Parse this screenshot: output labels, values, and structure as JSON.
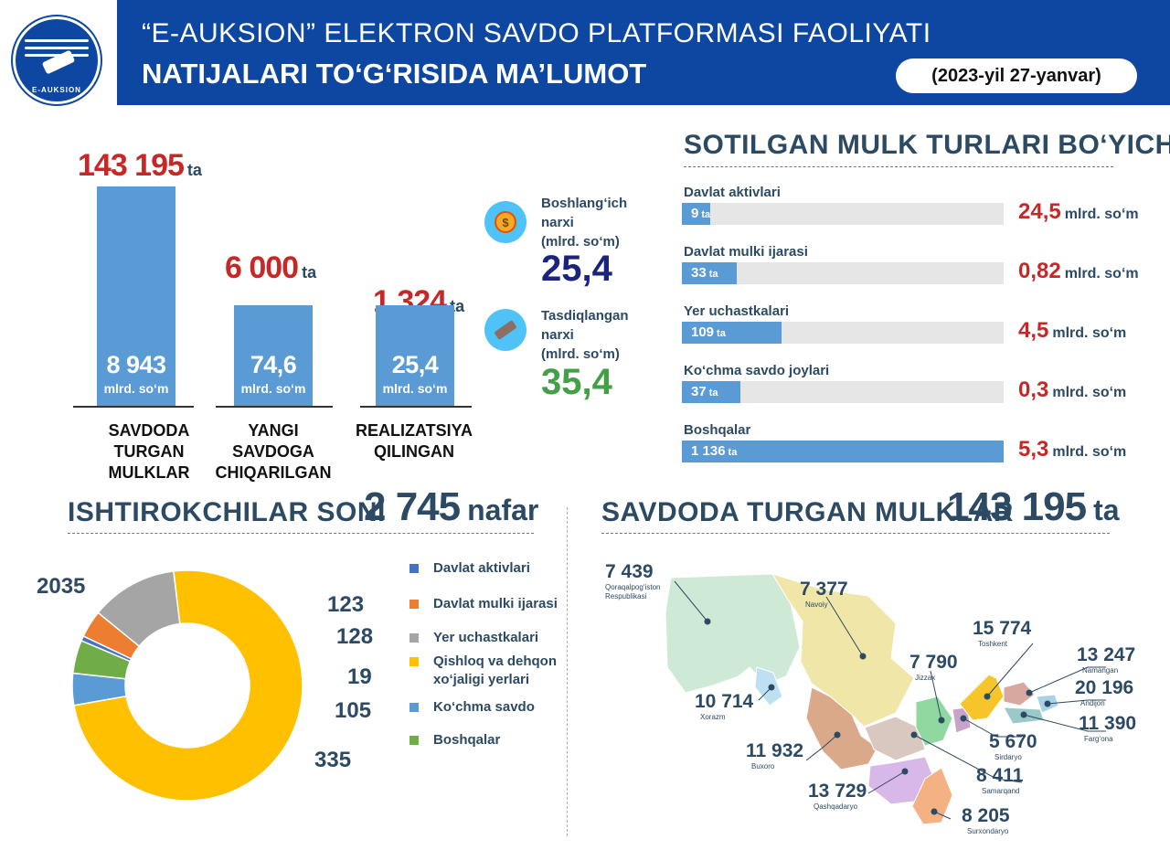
{
  "header": {
    "logo_text": "E-AUKSION",
    "title_line1": "“E-AUKSION” ELEKTRON SAVDO PLATFORMASI FAOLIYATI",
    "title_line2": "NATIJALARI TO‘G‘RISIDA MA’LUMOT",
    "date": "(2023-yil 27-yanvar)"
  },
  "summary": {
    "unit_count": "ta",
    "unit_money": "mlrd. so‘m",
    "bars": [
      {
        "count": "143 195",
        "count_value": 143195,
        "money": "8 943",
        "money_value": 8943,
        "caption1": "SAVDODA",
        "caption2": "TURGAN MULKLAR"
      },
      {
        "count": "6 000",
        "count_value": 6000,
        "money": "74,6",
        "money_value": 74.6,
        "caption1": "YANGI SAVDOGA",
        "caption2": "CHIQARILGAN"
      },
      {
        "count": "1 324",
        "count_value": 1324,
        "money": "25,4",
        "money_value": 25.4,
        "caption1": "REALIZATSIYA",
        "caption2": "QILINGAN"
      }
    ]
  },
  "prices": {
    "starting": {
      "l1": "Boshlang‘ich",
      "l2": "narxi",
      "l3": "(mlrd. so‘m)",
      "value": "25,4",
      "color": "#1a237e"
    },
    "approved": {
      "l1": "Tasdiqlangan",
      "l2": "narxi",
      "l3": "(mlrd. so‘m)",
      "value": "35,4",
      "color": "#43a047"
    }
  },
  "property_types": {
    "title": "SOTILGAN MULK TURLARI BO‘YICHA",
    "unit_count": "ta",
    "unit_money": "mlrd. so‘m",
    "items": [
      {
        "label": "Davlat aktivlari",
        "count": "9",
        "count_value": 9,
        "amount": "24,5"
      },
      {
        "label": "Davlat mulki ijarasi",
        "count": "33",
        "count_value": 33,
        "amount": "0,82"
      },
      {
        "label": "Yer uchastkalari",
        "count": "109",
        "count_value": 109,
        "amount": "4,5"
      },
      {
        "label": "Ko‘chma savdo joylari",
        "count": "37",
        "count_value": 37,
        "amount": "0,3"
      },
      {
        "label": "Boshqalar",
        "count": "1 136",
        "count_value": 1136,
        "amount": "5,3"
      }
    ]
  },
  "participants": {
    "title": "ISHTIROKCHILAR SONI",
    "total": "2 745",
    "unit": "nafar",
    "legend": [
      {
        "l1": "Davlat aktivlari",
        "l2": "",
        "color": "#4472c4"
      },
      {
        "l1": "Davlat mulki ijarasi",
        "l2": "",
        "color": "#ed7d31"
      },
      {
        "l1": "Yer uchastkalari",
        "l2": "",
        "color": "#a5a5a5"
      },
      {
        "l1": "Qishloq va dehqon",
        "l2": "xo‘jaligi yerlari",
        "color": "#ffc000"
      },
      {
        "l1": "Ko‘chma savdo",
        "l2": "",
        "color": "#5b9bd5"
      },
      {
        "l1": "Boshqalar",
        "l2": "",
        "color": "#70ad47"
      }
    ]
  },
  "regions_section": {
    "title": "SAVDODA TURGAN MULKLAR",
    "total": "143 195",
    "unit": "ta",
    "regions": [
      {
        "value": "7 439",
        "name": "Qoraqalpog‘iston",
        "name2": "Respublikasi"
      },
      {
        "value": "7 377",
        "name": "Navoiy",
        "name2": ""
      },
      {
        "value": "15 774",
        "name": "Toshkent",
        "name2": ""
      },
      {
        "value": "13 247",
        "name": "Namangan",
        "name2": ""
      },
      {
        "value": "7 790",
        "name": "Jizzax",
        "name2": ""
      },
      {
        "value": "20 196",
        "name": "Andijon",
        "name2": ""
      },
      {
        "value": "10 714",
        "name": "Xorazm",
        "name2": ""
      },
      {
        "value": "11 390",
        "name": "Farg‘ona",
        "name2": ""
      },
      {
        "value": "11 932",
        "name": "Buxoro",
        "name2": ""
      },
      {
        "value": "5 670",
        "name": "Sirdaryo",
        "name2": ""
      },
      {
        "value": "8 411",
        "name": "Samarqand",
        "name2": ""
      },
      {
        "value": "13 729",
        "name": "Qashqadaryo",
        "name2": ""
      },
      {
        "value": "8 205",
        "name": "Surxondaryo",
        "name2": ""
      }
    ]
  },
  "chart_data": [
    {
      "type": "bar",
      "categories": [
        "SAVDODA TURGAN MULKLAR",
        "YANGI SAVDOGA CHIQARILGAN",
        "REALIZATSIYA QILINGAN"
      ],
      "series": [
        {
          "name": "ta",
          "values": [
            143195,
            6000,
            1324
          ]
        },
        {
          "name": "mlrd. so‘m",
          "values": [
            8943,
            74.6,
            25.4
          ]
        }
      ]
    },
    {
      "type": "bar",
      "orientation": "horizontal",
      "title": "SOTILGAN MULK TURLARI BO‘YICHA",
      "categories": [
        "Davlat aktivlari",
        "Davlat mulki ijarasi",
        "Yer uchastkalari",
        "Ko‘chma savdo joylari",
        "Boshqalar"
      ],
      "series": [
        {
          "name": "ta",
          "values": [
            9,
            33,
            109,
            37,
            1136
          ]
        },
        {
          "name": "mlrd. so‘m",
          "values": [
            24.5,
            0.82,
            4.5,
            0.3,
            5.3
          ]
        }
      ],
      "xlim": [
        0,
        1136
      ]
    },
    {
      "type": "pie",
      "style": "donut",
      "title": "ISHTIROKCHILAR SONI",
      "categories": [
        "Davlat aktivlari",
        "Davlat mulki ijarasi",
        "Yer uchastkalari",
        "Qishloq va dehqon xo‘jaligi yerlari",
        "Ko‘chma savdo",
        "Boshqalar"
      ],
      "values": [
        19,
        105,
        335,
        2035,
        123,
        128
      ],
      "colors": [
        "#4472c4",
        "#ed7d31",
        "#a5a5a5",
        "#ffc000",
        "#5b9bd5",
        "#70ad47"
      ],
      "legend": "right"
    }
  ]
}
